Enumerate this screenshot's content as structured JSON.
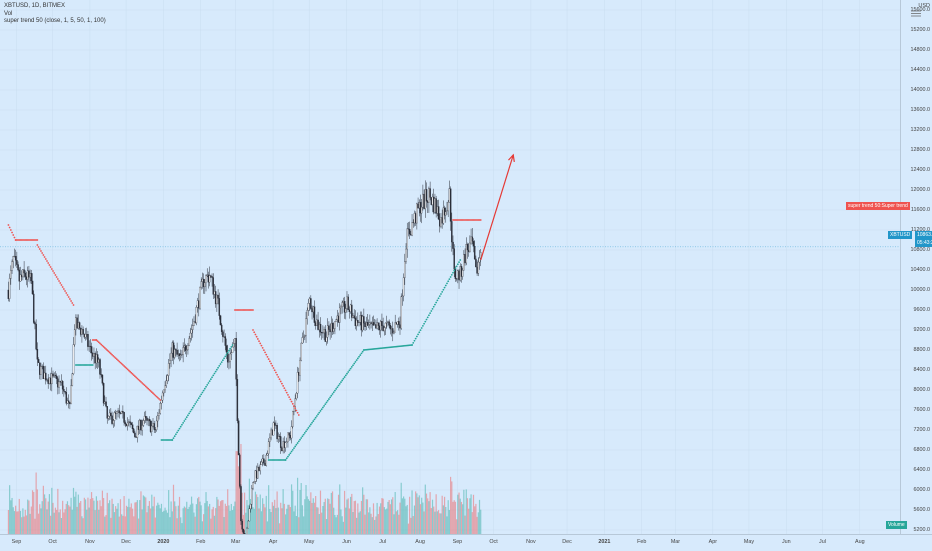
{
  "legend": {
    "symbol_line": "XBTUSD, 1D, BITMEX",
    "vol_label": "Vol",
    "indicator_line": "super trend 50 (close, 1, 5, 50, 1, 100)"
  },
  "price_axis": {
    "unit": "USD",
    "ticks": [
      "15600.0",
      "15200.0",
      "14800.0",
      "14400.0",
      "14000.0",
      "13600.0",
      "13200.0",
      "12800.0",
      "12400.0",
      "12000.0",
      "11600.0",
      "11200.0",
      "10800.0",
      "10400.0",
      "10000.0",
      "9600.0",
      "9200.0",
      "8800.0",
      "8400.0",
      "8000.0",
      "7600.0",
      "7200.0",
      "6800.0",
      "6400.0",
      "6000.0",
      "5600.0",
      "5200.0"
    ]
  },
  "time_axis": {
    "ticks": [
      "Sep",
      "Oct",
      "Nov",
      "Dec",
      "2020",
      "Feb",
      "Mar",
      "Apr",
      "May",
      "Jun",
      "Jul",
      "Aug",
      "Sep",
      "Oct",
      "Nov",
      "Dec",
      "2021",
      "Feb",
      "Mar",
      "Apr",
      "May",
      "Jun",
      "Jul",
      "Aug"
    ]
  },
  "tags": {
    "supertrend": "super trend 50:Super trend",
    "last_price": "10863.0",
    "countdown": "05:43:24",
    "volume": "Volume"
  },
  "colors": {
    "background": "#d7eafc",
    "up": "#26a69a",
    "down": "#ef5350",
    "candle": "#2a2e39",
    "price_tag": "#2196c9",
    "arrow": "#e53935"
  },
  "chart_data": {
    "type": "candlestick",
    "symbol": "XBTUSD",
    "timeframe": "1D",
    "exchange": "BITMEX",
    "ylim": [
      5200,
      15600
    ],
    "last_price": 10863.0,
    "trend_path": [
      {
        "date": "2019-09-01",
        "close": 10000
      },
      {
        "date": "2019-09-05",
        "close": 10600
      },
      {
        "date": "2019-09-10",
        "close": 10200
      },
      {
        "date": "2019-09-15",
        "close": 10300
      },
      {
        "date": "2019-09-20",
        "close": 10150
      },
      {
        "date": "2019-09-25",
        "close": 8500
      },
      {
        "date": "2019-10-01",
        "close": 8300
      },
      {
        "date": "2019-10-08",
        "close": 8200
      },
      {
        "date": "2019-10-15",
        "close": 8100
      },
      {
        "date": "2019-10-22",
        "close": 7600
      },
      {
        "date": "2019-10-26",
        "close": 9300
      },
      {
        "date": "2019-11-01",
        "close": 9200
      },
      {
        "date": "2019-11-08",
        "close": 8800
      },
      {
        "date": "2019-11-15",
        "close": 8500
      },
      {
        "date": "2019-11-22",
        "close": 7400
      },
      {
        "date": "2019-12-01",
        "close": 7500
      },
      {
        "date": "2019-12-08",
        "close": 7400
      },
      {
        "date": "2019-12-15",
        "close": 7100
      },
      {
        "date": "2019-12-22",
        "close": 7400
      },
      {
        "date": "2020-01-01",
        "close": 7200
      },
      {
        "date": "2020-01-08",
        "close": 8100
      },
      {
        "date": "2020-01-15",
        "close": 8800
      },
      {
        "date": "2020-01-22",
        "close": 8600
      },
      {
        "date": "2020-02-01",
        "close": 9300
      },
      {
        "date": "2020-02-10",
        "close": 10200
      },
      {
        "date": "2020-02-15",
        "close": 10300
      },
      {
        "date": "2020-02-22",
        "close": 9700
      },
      {
        "date": "2020-03-01",
        "close": 8600
      },
      {
        "date": "2020-03-07",
        "close": 8900
      },
      {
        "date": "2020-03-12",
        "close": 5400
      },
      {
        "date": "2020-03-16",
        "close": 5000
      },
      {
        "date": "2020-03-22",
        "close": 6200
      },
      {
        "date": "2020-04-01",
        "close": 6600
      },
      {
        "date": "2020-04-08",
        "close": 7300
      },
      {
        "date": "2020-04-15",
        "close": 6900
      },
      {
        "date": "2020-04-22",
        "close": 7100
      },
      {
        "date": "2020-05-01",
        "close": 8800
      },
      {
        "date": "2020-05-08",
        "close": 9800
      },
      {
        "date": "2020-05-15",
        "close": 9300
      },
      {
        "date": "2020-05-22",
        "close": 9100
      },
      {
        "date": "2020-06-01",
        "close": 9500
      },
      {
        "date": "2020-06-08",
        "close": 9700
      },
      {
        "date": "2020-06-15",
        "close": 9400
      },
      {
        "date": "2020-06-22",
        "close": 9300
      },
      {
        "date": "2020-07-01",
        "close": 9200
      },
      {
        "date": "2020-07-08",
        "close": 9300
      },
      {
        "date": "2020-07-15",
        "close": 9200
      },
      {
        "date": "2020-07-22",
        "close": 9400
      },
      {
        "date": "2020-07-27",
        "close": 11000
      },
      {
        "date": "2020-08-01",
        "close": 11300
      },
      {
        "date": "2020-08-08",
        "close": 11700
      },
      {
        "date": "2020-08-15",
        "close": 11900
      },
      {
        "date": "2020-08-20",
        "close": 11700
      },
      {
        "date": "2020-08-25",
        "close": 11400
      },
      {
        "date": "2020-09-01",
        "close": 11900
      },
      {
        "date": "2020-09-05",
        "close": 10300
      },
      {
        "date": "2020-09-10",
        "close": 10300
      },
      {
        "date": "2020-09-15",
        "close": 10800
      },
      {
        "date": "2020-09-20",
        "close": 10900
      },
      {
        "date": "2020-09-23",
        "close": 10300
      },
      {
        "date": "2020-09-27",
        "close": 10800
      }
    ],
    "supertrend": [
      {
        "from": "2019-09-01",
        "to": "2019-09-07",
        "start": 11300,
        "end": 11000,
        "direction": "down"
      },
      {
        "from": "2019-09-07",
        "to": "2019-09-25",
        "start": 11000,
        "end": 11000,
        "direction": "down"
      },
      {
        "from": "2019-09-25",
        "to": "2019-10-25",
        "start": 10900,
        "end": 9700,
        "direction": "down"
      },
      {
        "from": "2019-10-27",
        "to": "2019-11-10",
        "start": 8500,
        "end": 8500,
        "direction": "up"
      },
      {
        "from": "2019-11-10",
        "to": "2019-11-13",
        "start": 9000,
        "end": 9000,
        "direction": "down"
      },
      {
        "from": "2019-11-13",
        "to": "2020-01-05",
        "start": 9000,
        "end": 7800,
        "direction": "down"
      },
      {
        "from": "2020-01-06",
        "to": "2020-01-15",
        "start": 7000,
        "end": 7000,
        "direction": "up"
      },
      {
        "from": "2020-01-15",
        "to": "2020-03-05",
        "start": 7000,
        "end": 8900,
        "direction": "up"
      },
      {
        "from": "2020-03-07",
        "to": "2020-03-22",
        "start": 9600,
        "end": 9600,
        "direction": "down"
      },
      {
        "from": "2020-03-22",
        "to": "2020-04-29",
        "start": 9200,
        "end": 7500,
        "direction": "down"
      },
      {
        "from": "2020-04-04",
        "to": "2020-04-18",
        "start": 6600,
        "end": 6600,
        "direction": "up"
      },
      {
        "from": "2020-04-18",
        "to": "2020-06-22",
        "start": 6600,
        "end": 8800,
        "direction": "up"
      },
      {
        "from": "2020-06-22",
        "to": "2020-08-01",
        "start": 8800,
        "end": 8900,
        "direction": "up"
      },
      {
        "from": "2020-08-01",
        "to": "2020-09-10",
        "start": 8900,
        "end": 10600,
        "direction": "up"
      },
      {
        "from": "2020-09-04",
        "to": "2020-09-27",
        "start": 11400,
        "end": 11400,
        "direction": "down"
      }
    ],
    "projection_arrow": {
      "from": {
        "date": "2020-09-27",
        "price": 10600
      },
      "to": {
        "date": "2020-10-24",
        "price": 12700
      }
    }
  }
}
